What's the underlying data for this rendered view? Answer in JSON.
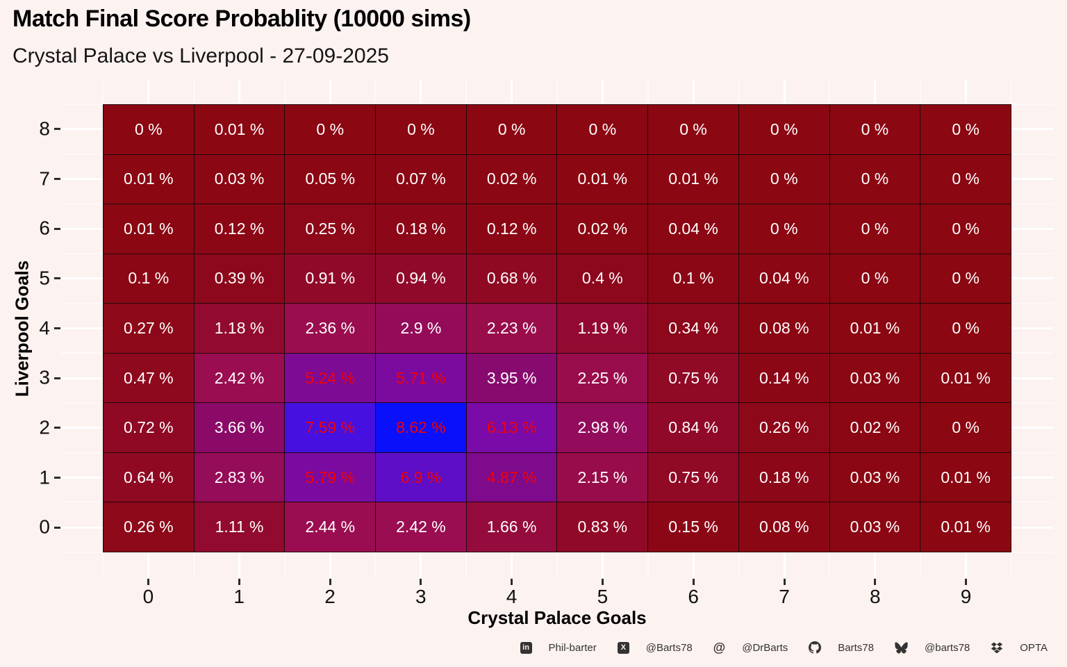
{
  "title": "Match Final Score Probablity (10000 sims)",
  "subtitle": "Crystal Palace vs Liverpool - 27-09-2025",
  "chart_data": {
    "type": "heatmap",
    "title": "Match Final Score Probablity (10000 sims)",
    "subtitle": "Crystal Palace vs Liverpool - 27-09-2025",
    "xlabel": "Crystal Palace Goals",
    "ylabel": "Liverpool Goals",
    "x_categories": [
      0,
      1,
      2,
      3,
      4,
      5,
      6,
      7,
      8,
      9
    ],
    "y_categories": [
      8,
      7,
      6,
      5,
      4,
      3,
      2,
      1,
      0
    ],
    "value_unit": "%",
    "rows": [
      [
        0,
        0.01,
        0,
        0,
        0,
        0,
        0,
        0,
        0,
        0
      ],
      [
        0.01,
        0.03,
        0.05,
        0.07,
        0.02,
        0.01,
        0.01,
        0,
        0,
        0
      ],
      [
        0.01,
        0.12,
        0.25,
        0.18,
        0.12,
        0.02,
        0.04,
        0,
        0,
        0
      ],
      [
        0.1,
        0.39,
        0.91,
        0.94,
        0.68,
        0.4,
        0.1,
        0.04,
        0,
        0
      ],
      [
        0.27,
        1.18,
        2.36,
        2.9,
        2.23,
        1.19,
        0.34,
        0.08,
        0.01,
        0
      ],
      [
        0.47,
        2.42,
        5.24,
        5.71,
        3.95,
        2.25,
        0.75,
        0.14,
        0.03,
        0.01
      ],
      [
        0.72,
        3.66,
        7.59,
        8.62,
        6.13,
        2.98,
        0.84,
        0.26,
        0.02,
        0
      ],
      [
        0.64,
        2.83,
        5.79,
        6.9,
        4.87,
        2.15,
        0.75,
        0.18,
        0.03,
        0.01
      ],
      [
        0.26,
        1.11,
        2.44,
        2.42,
        1.66,
        0.83,
        0.15,
        0.08,
        0.03,
        0.01
      ]
    ],
    "color_scale": {
      "max": 8.62,
      "low": "#8B0712",
      "high": "#0A10FA",
      "stops": [
        [
          0,
          "#8B0712"
        ],
        [
          0.28,
          "#9A0D50"
        ],
        [
          0.43,
          "#8A0A68"
        ],
        [
          0.57,
          "#7E0B8C"
        ],
        [
          0.71,
          "#7A0BA8"
        ],
        [
          0.88,
          "#4611E0"
        ],
        [
          1,
          "#0A10FA"
        ]
      ]
    },
    "red_text_threshold": 4.5,
    "cell_text_color_low": "#FFFFFF",
    "cell_text_color_high": "#F60000",
    "background": "#FCF2F0",
    "grid": "on"
  },
  "footer": {
    "items": [
      {
        "icon": "linkedin-icon",
        "label": "Phil-barter"
      },
      {
        "icon": "x-icon",
        "label": "@Barts78"
      },
      {
        "icon": "mastodon-icon",
        "label": "@DrBarts"
      },
      {
        "icon": "github-icon",
        "label": "Barts78"
      },
      {
        "icon": "bluesky-icon",
        "label": "@barts78"
      },
      {
        "icon": "dropbox-icon",
        "label": "OPTA"
      }
    ]
  }
}
